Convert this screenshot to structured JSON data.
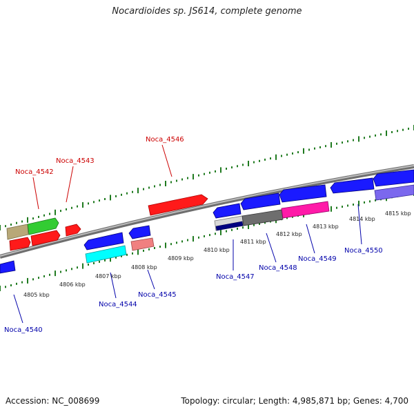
{
  "title": "Nocardioides sp. JS614, complete genome",
  "footer": {
    "accession": "Accession: NC_008699",
    "topology": "Topology: circular; Length: 4,985,871 bp; Genes: 4,700"
  },
  "colors": {
    "backbone": "#8c8c8c",
    "tick": "#1f7a1f",
    "label_forward": "#cc0000",
    "label_reverse": "#0000aa"
  },
  "ticks": [
    "4805 kbp",
    "4806 kbp",
    "4807 kbp",
    "4808 kbp",
    "4809 kbp",
    "4810 kbp",
    "4811 kbp",
    "4812 kbp",
    "4813 kbp",
    "4814 kbp",
    "4815 kbp"
  ],
  "gene_labels": {
    "forward": [
      "Noca_4542",
      "Noca_4543",
      "Noca_4546"
    ],
    "reverse": [
      "Noca_4540",
      "Noca_4544",
      "Noca_4545",
      "Noca_4547",
      "Noca_4548",
      "Noca_4549",
      "Noca_4550"
    ]
  }
}
